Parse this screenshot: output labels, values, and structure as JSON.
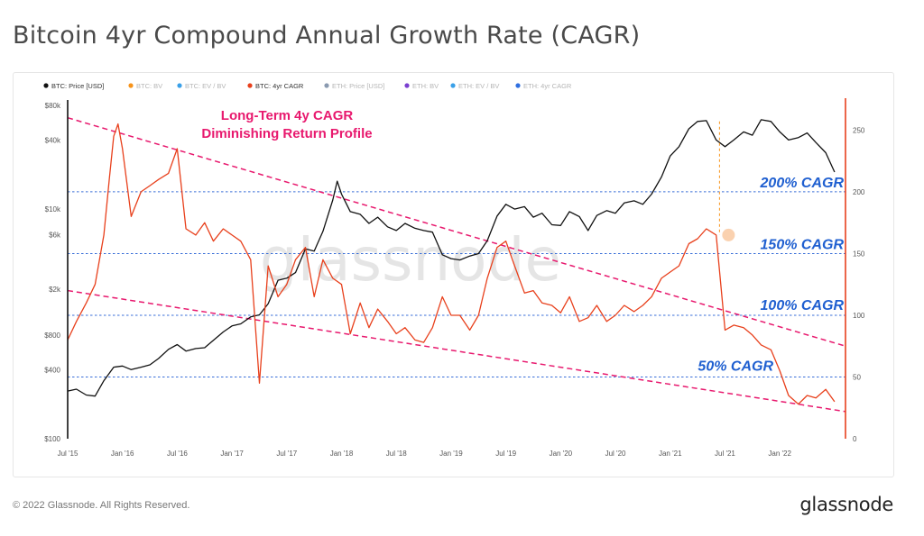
{
  "page_title": "Bitcoin 4yr Compound Annual Growth Rate (CAGR)",
  "footer": {
    "copyright": "© 2022 Glassnode. All Rights Reserved.",
    "logo": "glassnode"
  },
  "watermark": "glassnode",
  "colors": {
    "price": "#111111",
    "cagr": "#e8401c",
    "trend": "#e8196e",
    "level": "#3a6fd8",
    "annotation_text": "#e8196e",
    "level_text": "#1f5fd0",
    "axis_right": "#e8401c"
  },
  "chart_data": {
    "type": "line",
    "legend": [
      {
        "name": "BTC: Price [USD]",
        "color": "#111111",
        "active": true
      },
      {
        "name": "BTC: BV",
        "color": "#f7931a",
        "active": false
      },
      {
        "name": "BTC: EV / BV",
        "color": "#3aa0e8",
        "active": false
      },
      {
        "name": "BTC: 4yr CAGR",
        "color": "#e8401c",
        "active": true
      },
      {
        "name": "ETH: Price [USD]",
        "color": "#8a9ab0",
        "active": false
      },
      {
        "name": "ETH: BV",
        "color": "#7a3fd0",
        "active": false
      },
      {
        "name": "ETH: EV / BV",
        "color": "#3aa0e8",
        "active": false
      },
      {
        "name": "ETH: 4yr CAGR",
        "color": "#2f6fe0",
        "active": false
      }
    ],
    "legend_placement": "top-left",
    "x_ticks": [
      "Jul '15",
      "Jan '16",
      "Jul '16",
      "Jan '17",
      "Jul '17",
      "Jan '18",
      "Jul '18",
      "Jan '19",
      "Jul '19",
      "Jan '20",
      "Jul '20",
      "Jan '21",
      "Jul '21",
      "Jan '22"
    ],
    "x_tick_values": [
      2015.5,
      2016.0,
      2016.5,
      2017.0,
      2017.5,
      2018.0,
      2018.5,
      2019.0,
      2019.5,
      2020.0,
      2020.5,
      2021.0,
      2021.5,
      2022.0
    ],
    "x_range": [
      2015.5,
      2022.6
    ],
    "y_left": {
      "scale": "log",
      "range": [
        100,
        80000
      ],
      "tick_values": [
        100,
        400,
        800,
        2000,
        6000,
        10000,
        40000,
        80000
      ],
      "tick_labels": [
        "$100",
        "$400",
        "$800",
        "$2k",
        "$6k",
        "$10k",
        "$40k",
        "$80k"
      ]
    },
    "y_right": {
      "scale": "linear",
      "range": [
        0,
        270
      ],
      "tick_values": [
        0,
        50,
        100,
        150,
        200,
        250
      ],
      "tick_labels": [
        "0",
        "50",
        "100",
        "150",
        "200",
        "250"
      ]
    },
    "series": [
      {
        "name": "BTC: Price [USD]",
        "axis": "left",
        "x": [
          2015.5,
          2015.58,
          2015.67,
          2015.75,
          2015.83,
          2015.92,
          2016.0,
          2016.08,
          2016.17,
          2016.25,
          2016.33,
          2016.42,
          2016.5,
          2016.58,
          2016.67,
          2016.75,
          2016.83,
          2016.92,
          2017.0,
          2017.08,
          2017.17,
          2017.25,
          2017.33,
          2017.42,
          2017.5,
          2017.58,
          2017.67,
          2017.75,
          2017.83,
          2017.92,
          2017.96,
          2018.0,
          2018.08,
          2018.17,
          2018.25,
          2018.33,
          2018.42,
          2018.5,
          2018.58,
          2018.67,
          2018.75,
          2018.83,
          2018.92,
          2019.0,
          2019.08,
          2019.17,
          2019.25,
          2019.33,
          2019.42,
          2019.5,
          2019.58,
          2019.67,
          2019.75,
          2019.83,
          2019.92,
          2020.0,
          2020.08,
          2020.17,
          2020.25,
          2020.33,
          2020.42,
          2020.5,
          2020.58,
          2020.67,
          2020.75,
          2020.83,
          2020.92,
          2021.0,
          2021.08,
          2021.17,
          2021.25,
          2021.33,
          2021.42,
          2021.5,
          2021.58,
          2021.67,
          2021.75,
          2021.83,
          2021.92,
          2022.0,
          2022.08,
          2022.17,
          2022.25,
          2022.33,
          2022.42,
          2022.5
        ],
        "values": [
          260,
          270,
          240,
          235,
          320,
          420,
          430,
          400,
          420,
          440,
          500,
          600,
          660,
          580,
          610,
          620,
          720,
          850,
          960,
          1000,
          1150,
          1200,
          1500,
          2400,
          2500,
          2800,
          4500,
          4300,
          6400,
          12000,
          17500,
          13500,
          9500,
          9000,
          7500,
          8500,
          7000,
          6500,
          7500,
          6800,
          6500,
          6300,
          4000,
          3700,
          3600,
          3900,
          4100,
          5300,
          8700,
          11000,
          10000,
          10500,
          8500,
          9200,
          7300,
          7200,
          9500,
          8600,
          6500,
          8800,
          9700,
          9200,
          11300,
          11800,
          11000,
          13500,
          19000,
          29000,
          35000,
          50000,
          58000,
          59000,
          40000,
          35000,
          40000,
          47000,
          44000,
          60000,
          58000,
          47000,
          40000,
          42000,
          46000,
          38000,
          31000,
          21000
        ]
      },
      {
        "name": "BTC: 4yr CAGR",
        "axis": "right",
        "x": [
          2015.5,
          2015.58,
          2015.67,
          2015.75,
          2015.83,
          2015.88,
          2015.92,
          2015.96,
          2016.0,
          2016.08,
          2016.17,
          2016.25,
          2016.33,
          2016.42,
          2016.5,
          2016.58,
          2016.67,
          2016.75,
          2016.83,
          2016.92,
          2017.0,
          2017.08,
          2017.17,
          2017.25,
          2017.33,
          2017.42,
          2017.5,
          2017.58,
          2017.67,
          2017.75,
          2017.83,
          2017.92,
          2018.0,
          2018.08,
          2018.17,
          2018.25,
          2018.33,
          2018.42,
          2018.5,
          2018.58,
          2018.67,
          2018.75,
          2018.83,
          2018.92,
          2019.0,
          2019.08,
          2019.17,
          2019.25,
          2019.33,
          2019.42,
          2019.5,
          2019.58,
          2019.67,
          2019.75,
          2019.83,
          2019.92,
          2020.0,
          2020.08,
          2020.17,
          2020.25,
          2020.33,
          2020.42,
          2020.5,
          2020.58,
          2020.67,
          2020.75,
          2020.83,
          2020.92,
          2021.0,
          2021.08,
          2021.17,
          2021.25,
          2021.33,
          2021.42,
          2021.5,
          2021.58,
          2021.67,
          2021.75,
          2021.83,
          2021.92,
          2022.0,
          2022.08,
          2022.17,
          2022.25,
          2022.33,
          2022.42,
          2022.5
        ],
        "values": [
          80,
          95,
          110,
          125,
          165,
          210,
          245,
          255,
          235,
          180,
          200,
          205,
          210,
          215,
          235,
          170,
          165,
          175,
          160,
          170,
          165,
          160,
          145,
          45,
          140,
          115,
          125,
          145,
          155,
          115,
          145,
          130,
          125,
          85,
          110,
          90,
          105,
          95,
          85,
          90,
          80,
          78,
          90,
          115,
          100,
          100,
          88,
          100,
          130,
          155,
          160,
          140,
          118,
          120,
          110,
          108,
          102,
          115,
          95,
          98,
          108,
          95,
          100,
          108,
          103,
          108,
          115,
          130,
          135,
          140,
          158,
          162,
          170,
          165,
          88,
          92,
          90,
          84,
          76,
          72,
          55,
          35,
          28,
          35,
          33,
          40,
          30
        ]
      }
    ],
    "levels": [
      {
        "label": "200% CAGR",
        "value": 200
      },
      {
        "label": "150% CAGR",
        "value": 150
      },
      {
        "label": "100% CAGR",
        "value": 100
      },
      {
        "label": "50% CAGR",
        "value": 50
      }
    ],
    "trendlines_cagr": [
      {
        "x": [
          2015.5,
          2022.6
        ],
        "values": [
          260,
          75
        ]
      },
      {
        "x": [
          2015.5,
          2022.6
        ],
        "values": [
          120,
          22
        ]
      }
    ],
    "annotations": [
      {
        "text": "Long-Term 4y CAGR"
      },
      {
        "text": "Diminishing Return Profile"
      }
    ],
    "highlight_point": {
      "x": 2021.45,
      "value_right": 165
    }
  }
}
